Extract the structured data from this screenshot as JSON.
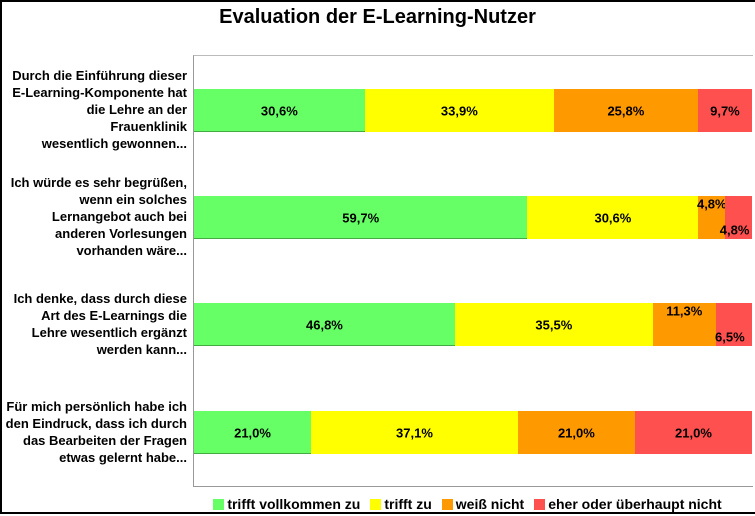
{
  "chart_data": {
    "type": "bar",
    "orientation": "horizontal-stacked-100",
    "title": "Evaluation der E-Learning-Nutzer",
    "categories": [
      "Durch die Einführung dieser E-Learning-Komponente hat die Lehre an der Frauenklinik wesentlich gewonnen...",
      "Ich würde es sehr begrüßen, wenn ein solches Lernangebot auch bei anderen Vorlesungen vorhanden wäre...",
      "Ich denke, dass durch diese Art des E-Learnings die Lehre wesentlich ergänzt werden kann...",
      "Für mich persönlich habe ich den Eindruck, dass ich durch das Bearbeiten der Fragen etwas gelernt habe..."
    ],
    "category_lines": [
      [
        "Durch die Einführung dieser",
        "E-Learning-Komponente hat",
        "die Lehre an der",
        "Frauenklinik",
        "wesentlich gewonnen..."
      ],
      [
        "Ich würde es sehr begrüßen,",
        "wenn ein solches",
        "Lernangebot auch bei",
        "anderen Vorlesungen",
        "vorhanden wäre..."
      ],
      [
        "Ich denke, dass durch diese",
        "Art des E-Learnings die",
        "Lehre wesentlich ergänzt",
        "werden kann..."
      ],
      [
        "Für mich persönlich habe ich",
        "den Eindruck, dass ich durch",
        "das Bearbeiten der Fragen",
        "etwas gelernt habe..."
      ]
    ],
    "series": [
      {
        "name": "trifft vollkommen zu",
        "color": "#66FF66",
        "values": [
          30.6,
          59.7,
          46.8,
          21.0
        ],
        "labels": [
          "30,6%",
          "59,7%",
          "46,8%",
          "21,0%"
        ]
      },
      {
        "name": "trifft zu",
        "color": "#FFFF00",
        "values": [
          33.9,
          30.6,
          35.5,
          37.1
        ],
        "labels": [
          "33,9%",
          "30,6%",
          "35,5%",
          "37,1%"
        ]
      },
      {
        "name": "weiß nicht",
        "color": "#FF9900",
        "values": [
          25.8,
          4.8,
          11.3,
          21.0
        ],
        "labels": [
          "25,8%",
          "4,8%",
          "11,3%",
          "21,0%"
        ]
      },
      {
        "name": "eher oder überhaupt nicht",
        "color": "#FF5050",
        "values": [
          9.7,
          4.8,
          6.5,
          21.0
        ],
        "labels": [
          "9,7%",
          "4,8%",
          "6,5%",
          "21,0%"
        ]
      }
    ],
    "xlim": [
      0,
      100
    ],
    "legend": "bottom",
    "grid": false
  }
}
